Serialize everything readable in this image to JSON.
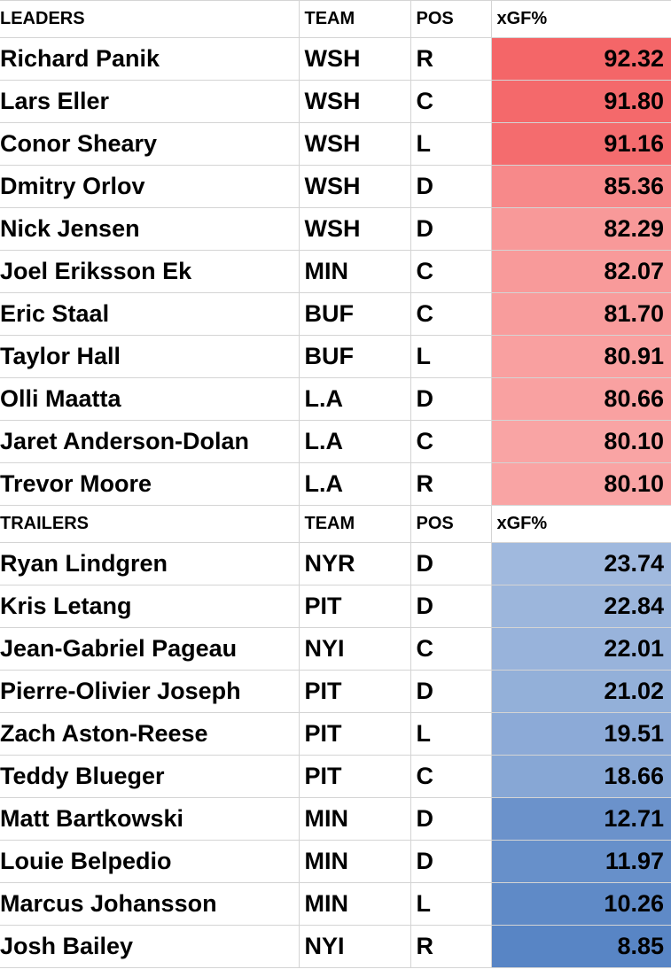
{
  "sections": [
    {
      "header": [
        "LEADERS",
        "TEAM",
        "POS",
        "xGF%"
      ],
      "rows": [
        [
          "Richard Panik",
          "WSH",
          "R",
          "92.32"
        ],
        [
          "Lars Eller",
          "WSH",
          "C",
          "91.80"
        ],
        [
          "Conor Sheary",
          "WSH",
          "L",
          "91.16"
        ],
        [
          "Dmitry Orlov",
          "WSH",
          "D",
          "85.36"
        ],
        [
          "Nick Jensen",
          "WSH",
          "D",
          "82.29"
        ],
        [
          "Joel Eriksson Ek",
          "MIN",
          "C",
          "82.07"
        ],
        [
          "Eric Staal",
          "BUF",
          "C",
          "81.70"
        ],
        [
          "Taylor Hall",
          "BUF",
          "L",
          "80.91"
        ],
        [
          "Olli Maatta",
          "L.A",
          "D",
          "80.66"
        ],
        [
          "Jaret Anderson-Dolan",
          "L.A",
          "C",
          "80.10"
        ],
        [
          "Trevor Moore",
          "L.A",
          "R",
          "80.10"
        ]
      ]
    },
    {
      "header": [
        "TRAILERS",
        "TEAM",
        "POS",
        "xGF%"
      ],
      "rows": [
        [
          "Ryan Lindgren",
          "NYR",
          "D",
          "23.74"
        ],
        [
          "Kris Letang",
          "PIT",
          "D",
          "22.84"
        ],
        [
          "Jean-Gabriel Pageau",
          "NYI",
          "C",
          "22.01"
        ],
        [
          "Pierre-Olivier Joseph",
          "PIT",
          "D",
          "21.02"
        ],
        [
          "Zach Aston-Reese",
          "PIT",
          "L",
          "19.51"
        ],
        [
          "Teddy Blueger",
          "PIT",
          "C",
          "18.66"
        ],
        [
          "Matt Bartkowski",
          "MIN",
          "D",
          "12.71"
        ],
        [
          "Louie Belpedio",
          "MIN",
          "D",
          "11.97"
        ],
        [
          "Marcus Johansson",
          "MIN",
          "L",
          "10.26"
        ],
        [
          "Josh Bailey",
          "NYI",
          "R",
          "8.85"
        ]
      ]
    }
  ]
}
